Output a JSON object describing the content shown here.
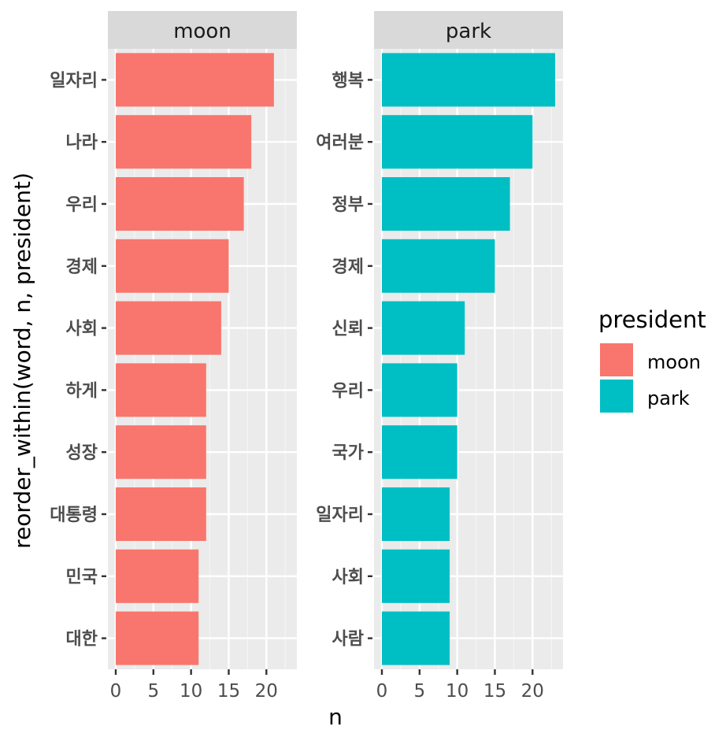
{
  "chart_data": {
    "type": "bar",
    "orientation": "horizontal",
    "xlabel": "n",
    "ylabel": "reorder_within(word, n, president)",
    "xlim": [
      0,
      23
    ],
    "x_ticks": [
      0,
      5,
      10,
      15,
      20
    ],
    "grid": true,
    "legend": {
      "title": "president",
      "position": "right",
      "entries": [
        {
          "label": "moon",
          "color": "#F8766D"
        },
        {
          "label": "park",
          "color": "#00BFC4"
        }
      ]
    },
    "facets": [
      {
        "strip": "moon",
        "color": "#F8766D",
        "categories": [
          "일자리",
          "나라",
          "우리",
          "경제",
          "사회",
          "하게",
          "성장",
          "대통령",
          "민국",
          "대한"
        ],
        "values": [
          21,
          18,
          17,
          15,
          14,
          12,
          12,
          12,
          11,
          11
        ]
      },
      {
        "strip": "park",
        "color": "#00BFC4",
        "categories": [
          "행복",
          "여러분",
          "정부",
          "경제",
          "신뢰",
          "우리",
          "국가",
          "일자리",
          "사회",
          "사람"
        ],
        "values": [
          23,
          20,
          17,
          15,
          11,
          10,
          10,
          9,
          9,
          9
        ]
      }
    ]
  }
}
